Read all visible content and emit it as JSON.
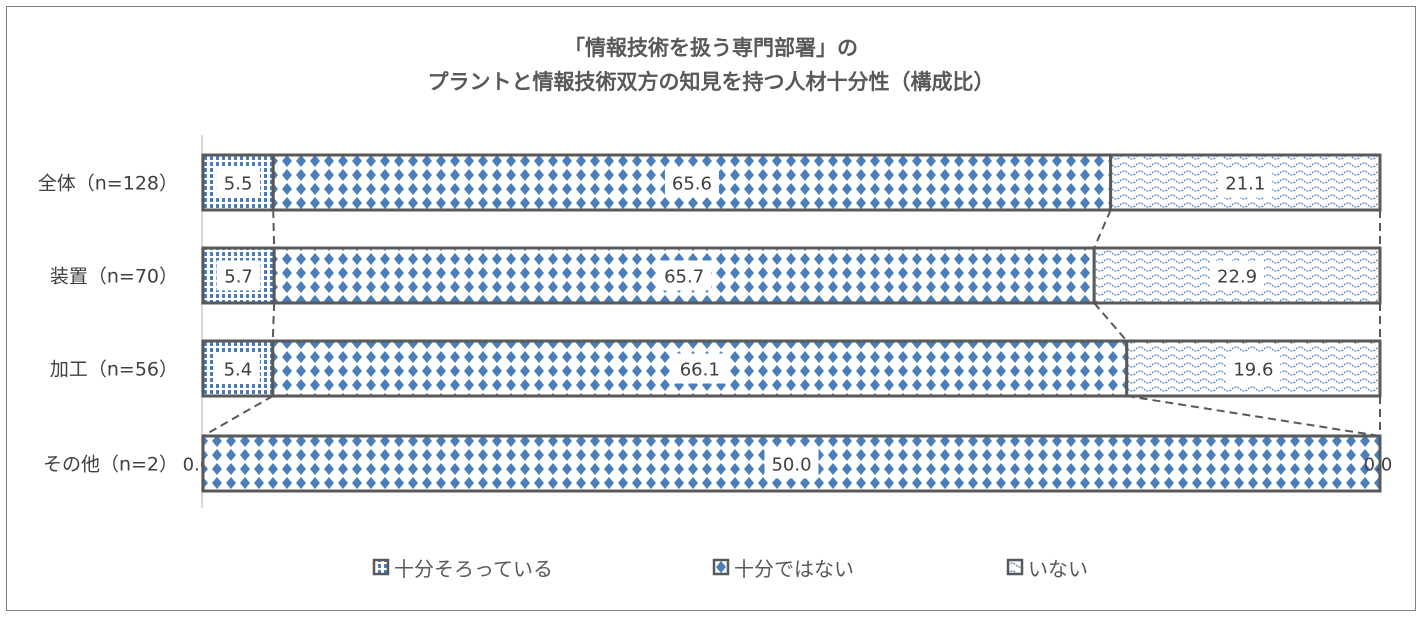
{
  "chart_data": {
    "type": "bar",
    "orientation": "horizontal",
    "stacked": "100%",
    "title": [
      "「情報技術を扱う専門部署」の",
      "プラントと情報技術双方の知見を持つ人材十分性（構成比）"
    ],
    "categories": [
      "全体（n=128）",
      "装置（n=70）",
      "加工（n=56）",
      "その他（n=2）"
    ],
    "series": [
      {
        "name": "十分そろっている",
        "values": [
          5.5,
          5.7,
          5.4,
          0.0
        ],
        "pattern": "vertical-stripes"
      },
      {
        "name": "十分ではない",
        "values": [
          65.6,
          65.7,
          66.1,
          50.0
        ],
        "pattern": "diamonds"
      },
      {
        "name": "いない",
        "values": [
          21.1,
          22.9,
          19.6,
          0.0
        ],
        "pattern": "waves"
      }
    ],
    "series_lines": true,
    "legend_position": "bottom",
    "grid": false,
    "colors": {
      "accent": "#4a7ebb",
      "border": "#595959"
    }
  }
}
